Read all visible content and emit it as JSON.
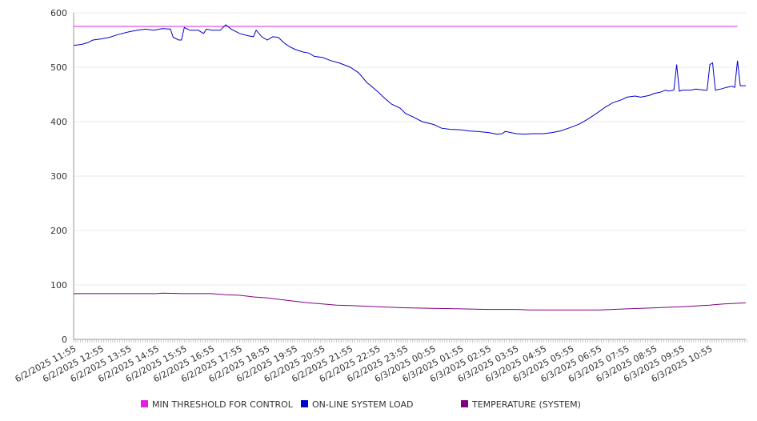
{
  "chart_data": {
    "type": "line",
    "title": "",
    "xlabel": "",
    "ylabel": "",
    "ylim": [
      0,
      600
    ],
    "yticks": [
      0,
      100,
      200,
      300,
      400,
      500,
      600
    ],
    "grid": "horizontal",
    "legend_position": "bottom",
    "x_tick_labels": [
      "6/2/2025 11:55",
      "6/2/2025 12:55",
      "6/2/2025 13:55",
      "6/2/2025 14:55",
      "6/2/2025 15:55",
      "6/2/2025 16:55",
      "6/2/2025 17:55",
      "6/2/2025 18:55",
      "6/2/2025 19:55",
      "6/2/2025 20:55",
      "6/2/2025 21:55",
      "6/2/2025 22:55",
      "6/2/2025 23:55",
      "6/3/2025 00:55",
      "6/3/2025 01:55",
      "6/3/2025 02:55",
      "6/3/2025 03:55",
      "6/3/2025 04:55",
      "6/3/2025 05:55",
      "6/3/2025 06:55",
      "6/3/2025 07:55",
      "6/3/2025 08:55",
      "6/3/2025 09:55",
      "6/3/2025 10:55"
    ],
    "series": [
      {
        "name": "MIN THRESHOLD FOR CONTROL",
        "color": "#e020e0",
        "points": [
          [
            0,
            575
          ],
          [
            24,
            575
          ]
        ]
      },
      {
        "name": "ON-LINE SYSTEM LOAD",
        "color": "#0000cc",
        "points": [
          [
            0,
            540
          ],
          [
            0.3,
            542
          ],
          [
            0.5,
            545
          ],
          [
            0.7,
            550
          ],
          [
            1.0,
            552
          ],
          [
            1.3,
            555
          ],
          [
            1.6,
            560
          ],
          [
            2.0,
            565
          ],
          [
            2.3,
            568
          ],
          [
            2.6,
            570
          ],
          [
            2.9,
            568
          ],
          [
            3.2,
            571
          ],
          [
            3.5,
            570
          ],
          [
            3.6,
            555
          ],
          [
            3.8,
            550
          ],
          [
            3.9,
            550
          ],
          [
            4.0,
            573
          ],
          [
            4.2,
            568
          ],
          [
            4.5,
            568
          ],
          [
            4.7,
            562
          ],
          [
            4.8,
            570
          ],
          [
            5.0,
            568
          ],
          [
            5.3,
            568
          ],
          [
            5.5,
            578
          ],
          [
            5.7,
            570
          ],
          [
            6.0,
            562
          ],
          [
            6.3,
            558
          ],
          [
            6.5,
            556
          ],
          [
            6.6,
            568
          ],
          [
            6.8,
            556
          ],
          [
            7.0,
            550
          ],
          [
            7.2,
            556
          ],
          [
            7.4,
            555
          ],
          [
            7.6,
            545
          ],
          [
            7.8,
            538
          ],
          [
            8.0,
            533
          ],
          [
            8.3,
            528
          ],
          [
            8.5,
            526
          ],
          [
            8.7,
            520
          ],
          [
            9.0,
            518
          ],
          [
            9.3,
            512
          ],
          [
            9.6,
            508
          ],
          [
            10.0,
            500
          ],
          [
            10.3,
            490
          ],
          [
            10.6,
            472
          ],
          [
            11.0,
            455
          ],
          [
            11.2,
            445
          ],
          [
            11.5,
            432
          ],
          [
            11.8,
            425
          ],
          [
            12.0,
            415
          ],
          [
            12.3,
            408
          ],
          [
            12.6,
            400
          ],
          [
            13.0,
            395
          ],
          [
            13.3,
            388
          ],
          [
            13.6,
            386
          ],
          [
            14.0,
            385
          ],
          [
            14.3,
            383
          ],
          [
            14.6,
            382
          ],
          [
            15.0,
            380
          ],
          [
            15.3,
            377
          ],
          [
            15.5,
            378
          ],
          [
            15.6,
            382
          ],
          [
            16.0,
            378
          ],
          [
            16.3,
            377
          ],
          [
            16.6,
            378
          ],
          [
            17.0,
            378
          ],
          [
            17.3,
            380
          ],
          [
            17.6,
            383
          ],
          [
            18.0,
            390
          ],
          [
            18.3,
            396
          ],
          [
            18.6,
            405
          ],
          [
            18.9,
            415
          ],
          [
            19.2,
            426
          ],
          [
            19.5,
            435
          ],
          [
            19.8,
            440
          ],
          [
            20.0,
            445
          ],
          [
            20.3,
            447
          ],
          [
            20.5,
            445
          ],
          [
            20.8,
            448
          ],
          [
            21.0,
            452
          ],
          [
            21.2,
            454
          ],
          [
            21.4,
            458
          ],
          [
            21.5,
            456
          ],
          [
            21.7,
            458
          ],
          [
            21.8,
            505
          ],
          [
            21.9,
            456
          ],
          [
            22.0,
            458
          ],
          [
            22.3,
            458
          ],
          [
            22.5,
            460
          ],
          [
            22.8,
            458
          ],
          [
            22.9,
            458
          ],
          [
            23.0,
            505
          ],
          [
            23.1,
            508
          ],
          [
            23.2,
            458
          ],
          [
            23.4,
            460
          ],
          [
            23.6,
            463
          ],
          [
            23.8,
            465
          ],
          [
            23.9,
            463
          ],
          [
            24.0,
            512
          ],
          [
            24.1,
            466
          ],
          [
            24.3,
            466
          ]
        ]
      },
      {
        "name": "TEMPERATURE (SYSTEM)",
        "color": "#800080",
        "points": [
          [
            0,
            84
          ],
          [
            1,
            84
          ],
          [
            2,
            84
          ],
          [
            3,
            84
          ],
          [
            3.2,
            85
          ],
          [
            4,
            84
          ],
          [
            5,
            84
          ],
          [
            5.5,
            82
          ],
          [
            6,
            81
          ],
          [
            6.5,
            78
          ],
          [
            7,
            76
          ],
          [
            7.5,
            73
          ],
          [
            8,
            70
          ],
          [
            8.5,
            67
          ],
          [
            9,
            65
          ],
          [
            9.5,
            63
          ],
          [
            10,
            62
          ],
          [
            11,
            60
          ],
          [
            12,
            58
          ],
          [
            13,
            57
          ],
          [
            14,
            56
          ],
          [
            15,
            55
          ],
          [
            16,
            55
          ],
          [
            16.5,
            54
          ],
          [
            17,
            54
          ],
          [
            18,
            54
          ],
          [
            19,
            54
          ],
          [
            20,
            56
          ],
          [
            21,
            58
          ],
          [
            21.5,
            59
          ],
          [
            22,
            60
          ],
          [
            23,
            63
          ],
          [
            23.5,
            65
          ],
          [
            24.3,
            67
          ]
        ]
      }
    ]
  }
}
